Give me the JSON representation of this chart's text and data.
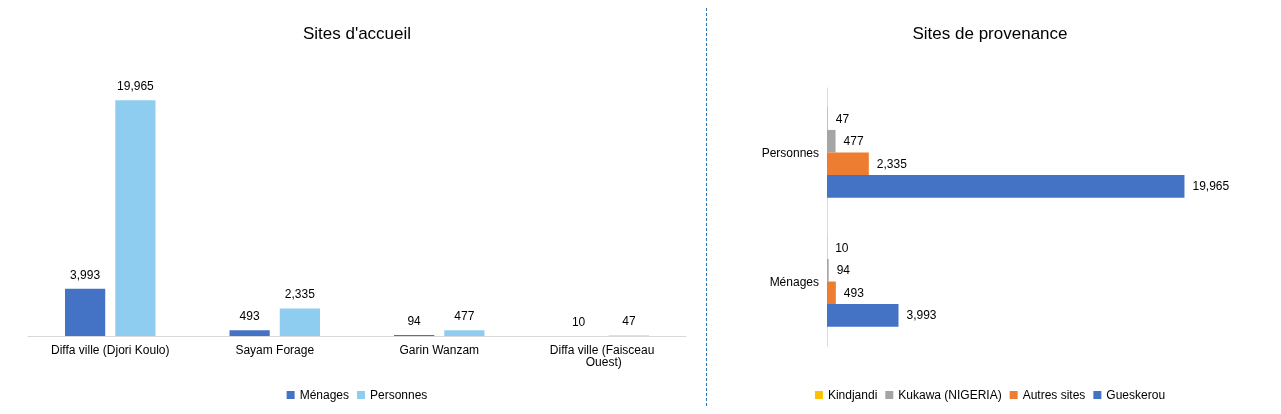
{
  "chart_data": [
    {
      "type": "bar",
      "title": "Sites d'accueil",
      "categories": [
        "Diffa ville (Djori Koulo)",
        "Sayam Forage",
        "Garin Wanzam",
        "Diffa ville (Faisceau Ouest)"
      ],
      "series": [
        {
          "name": "Ménages",
          "color": "#4472c4",
          "values": [
            3993,
            493,
            94,
            10
          ],
          "value_labels": [
            "3,993",
            "493",
            "94",
            "10"
          ]
        },
        {
          "name": "Personnes",
          "color": "#8fcdf0",
          "values": [
            19965,
            2335,
            477,
            47
          ],
          "value_labels": [
            "19,965",
            "2,335",
            "477",
            "47"
          ]
        }
      ],
      "legend": "bottom",
      "grid": false
    },
    {
      "type": "bar",
      "orientation": "horizontal",
      "title": "Sites de provenance",
      "categories": [
        "Personnes",
        "Ménages"
      ],
      "series": [
        {
          "name": "Kindjandi",
          "color": "#ffc000",
          "values": [
            47,
            10
          ],
          "value_labels": [
            "47",
            "10"
          ]
        },
        {
          "name": "Kukawa (NIGERIA)",
          "color": "#a5a5a5",
          "values": [
            477,
            94
          ],
          "value_labels": [
            "477",
            "94"
          ]
        },
        {
          "name": "Autres sites",
          "color": "#ed7d31",
          "values": [
            2335,
            493
          ],
          "value_labels": [
            "2,335",
            "493"
          ]
        },
        {
          "name": "Gueskerou",
          "color": "#4472c4",
          "values": [
            19965,
            3993
          ],
          "value_labels": [
            "19,965",
            "3,993"
          ]
        }
      ],
      "legend": "bottom",
      "grid": false
    }
  ]
}
